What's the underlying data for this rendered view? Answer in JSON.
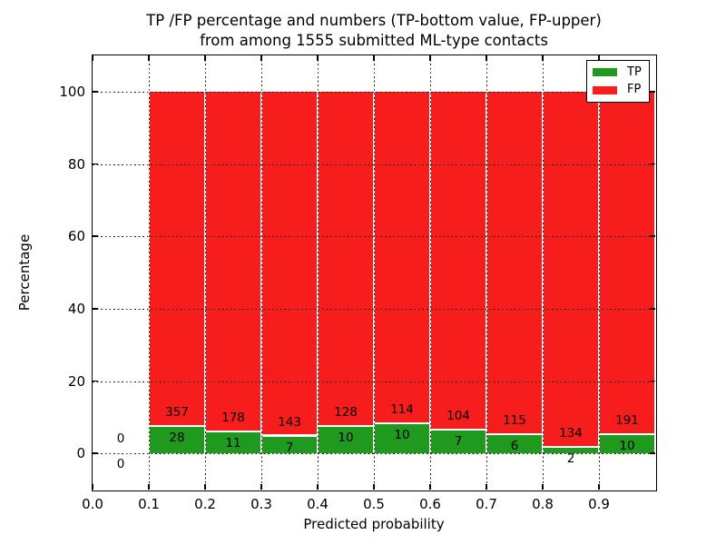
{
  "title": {
    "line1": "TP /FP percentage and numbers (TP-bottom value, FP-upper)",
    "line2": "from among 1555 submitted ML-type contacts"
  },
  "axes": {
    "xlabel": "Predicted probability",
    "ylabel": "Percentage"
  },
  "legend": {
    "position": "upper right",
    "items": [
      {
        "label": "TP",
        "color": "#1f9a1f"
      },
      {
        "label": "FP",
        "color": "#f71d1d"
      }
    ]
  },
  "colors": {
    "tp_green": "#1f9a1f",
    "fp_red": "#f71d1d",
    "axis": "#000000",
    "grid": "#1a1a1a",
    "background": "#ffffff",
    "bar_edge": "#ffffff"
  },
  "chart_data": {
    "type": "bar",
    "stacked": true,
    "normalized_to_percent": true,
    "title": "TP /FP percentage and numbers (TP-bottom value, FP-upper) from among 1555 submitted ML-type contacts",
    "xlabel": "Predicted probability",
    "ylabel": "Percentage",
    "xlim": [
      0.0,
      1.0
    ],
    "ylim": [
      -10,
      110
    ],
    "yticks": [
      0,
      20,
      40,
      60,
      80,
      100
    ],
    "xticks": [
      0.0,
      0.1,
      0.2,
      0.3,
      0.4,
      0.5,
      0.6,
      0.7,
      0.8,
      0.9
    ],
    "xtick_labels": [
      "0.0",
      "0.1",
      "0.2",
      "0.3",
      "0.4",
      "0.5",
      "0.6",
      "0.7",
      "0.8",
      "0.9"
    ],
    "bin_width": 0.1,
    "bin_starts": [
      0.0,
      0.1,
      0.2,
      0.3,
      0.4,
      0.5,
      0.6,
      0.7,
      0.8,
      0.9
    ],
    "series": [
      {
        "name": "TP",
        "color": "#1f9a1f",
        "counts": [
          0,
          28,
          11,
          7,
          10,
          10,
          7,
          6,
          2,
          10
        ]
      },
      {
        "name": "FP",
        "color": "#f71d1d",
        "counts": [
          0,
          357,
          178,
          143,
          128,
          114,
          104,
          115,
          134,
          191
        ]
      }
    ],
    "tp_percent_of_bin": [
      0,
      7.27,
      5.82,
      4.67,
      7.25,
      8.06,
      6.31,
      4.96,
      1.47,
      4.98
    ],
    "bar_total_percent": 100,
    "total_contacts": 1555,
    "grid": {
      "linestyle": "dotted",
      "drawn_above_bars": true
    },
    "legend_position": "upper right"
  }
}
